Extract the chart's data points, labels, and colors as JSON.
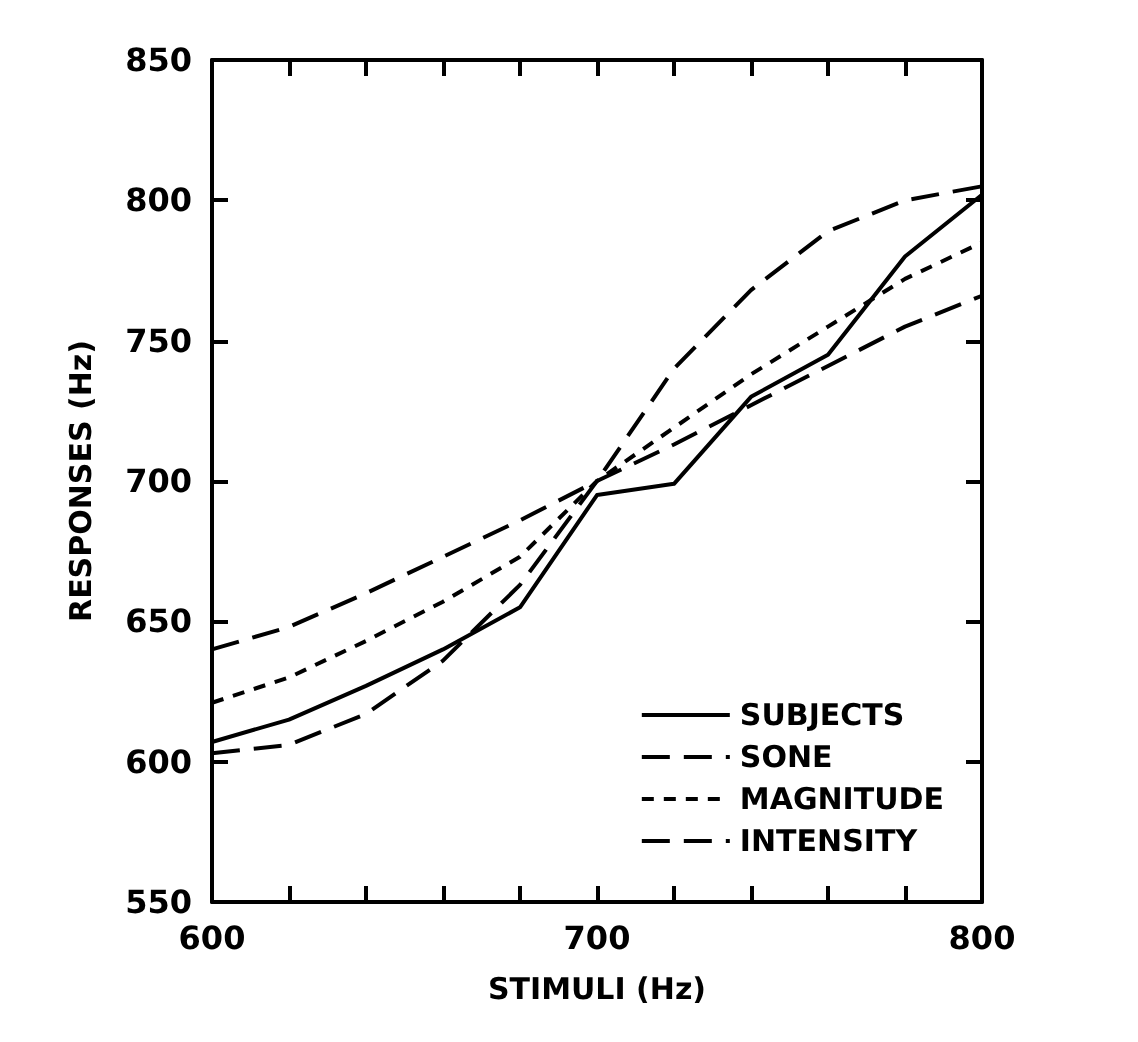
{
  "chart_data": {
    "type": "line",
    "xlabel": "STIMULI (Hz)",
    "ylabel": "RESPONSES (Hz)",
    "x": [
      600,
      620,
      640,
      660,
      680,
      700,
      720,
      740,
      760,
      780,
      800
    ],
    "xlim": [
      600,
      800
    ],
    "xticks": [
      600,
      {
        "value": 620,
        "label": null
      },
      {
        "value": 640,
        "label": null
      },
      {
        "value": 660,
        "label": null
      },
      {
        "value": 680,
        "label": null
      },
      700,
      {
        "value": 720,
        "label": null
      },
      {
        "value": 740,
        "label": null
      },
      {
        "value": 760,
        "label": null
      },
      {
        "value": 780,
        "label": null
      },
      800
    ],
    "ylim": [
      550,
      850
    ],
    "yticks": [
      550,
      600,
      650,
      700,
      750,
      800,
      850
    ],
    "grid": false,
    "legend": "bottom right",
    "marker": "none",
    "series": [
      {
        "name": "SUBJECTS",
        "color": "#000000",
        "line_style": "solid",
        "values": [
          607,
          615,
          627,
          640,
          655,
          695,
          699,
          730,
          745,
          780,
          802
        ]
      },
      {
        "name": "SONE",
        "color": "#000000",
        "line_style": "dashed",
        "values": [
          640,
          648,
          660,
          673,
          686,
          700,
          713,
          727,
          741,
          755,
          766
        ]
      },
      {
        "name": "MAGNITUDE",
        "color": "#000000",
        "line_style": "dotted",
        "values": [
          621,
          630,
          643,
          657,
          673,
          700,
          719,
          738,
          755,
          772,
          785
        ]
      },
      {
        "name": "INTENSITY",
        "color": "#000000",
        "line_style": "dashed",
        "values": [
          603,
          606,
          617,
          636,
          663,
          700,
          740,
          768,
          789,
          800,
          805
        ]
      }
    ]
  }
}
